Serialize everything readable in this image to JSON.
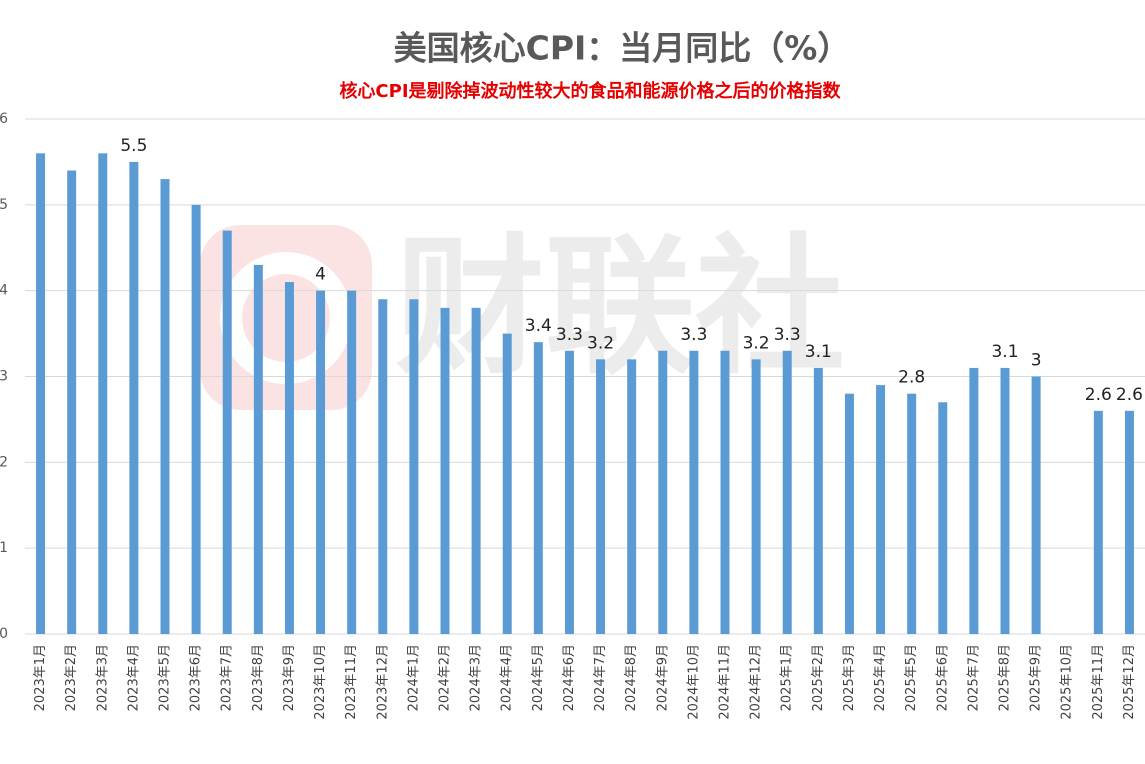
{
  "chart_data": {
    "type": "bar",
    "title": "美国核心CPI：当月同比（%）",
    "subtitle": "核心CPI是剔除掉波动性较大的食品和能源价格之后的价格指数",
    "watermark": "财联社",
    "categories": [
      "2023年1月",
      "2023年2月",
      "2023年3月",
      "2023年4月",
      "2023年5月",
      "2023年6月",
      "2023年7月",
      "2023年8月",
      "2023年9月",
      "2023年10月",
      "2023年11月",
      "2023年12月",
      "2024年1月",
      "2024年2月",
      "2024年3月",
      "2024年4月",
      "2024年5月",
      "2024年6月",
      "2024年7月",
      "2024年8月",
      "2024年9月",
      "2024年10月",
      "2024年11月",
      "2024年12月",
      "2025年1月",
      "2025年2月",
      "2025年3月",
      "2025年4月",
      "2025年5月",
      "2025年6月",
      "2025年7月",
      "2025年8月",
      "2025年9月",
      "2025年10月",
      "2025年11月",
      "2025年12月"
    ],
    "values": [
      5.6,
      5.4,
      5.6,
      5.5,
      5.3,
      5.0,
      4.7,
      4.3,
      4.1,
      4.0,
      4.0,
      3.9,
      3.9,
      3.8,
      3.8,
      3.5,
      3.4,
      3.3,
      3.2,
      3.2,
      3.3,
      3.3,
      3.3,
      3.2,
      3.3,
      3.1,
      2.8,
      2.9,
      2.8,
      2.7,
      3.1,
      3.1,
      3.0,
      null,
      2.6,
      2.6
    ],
    "value_labels": [
      null,
      null,
      null,
      "5.5",
      null,
      null,
      null,
      null,
      null,
      "4",
      null,
      null,
      null,
      null,
      null,
      null,
      "3.4",
      "3.3",
      "3.2",
      null,
      null,
      "3.3",
      null,
      "3.2",
      "3.3",
      "3.1",
      null,
      null,
      "2.8",
      null,
      null,
      "3.1",
      "3",
      null,
      "2.6",
      "2.6"
    ],
    "color": "#5b9bd5",
    "ylim": [
      0,
      6
    ],
    "yticks": [
      0,
      1,
      2,
      3,
      4,
      5,
      6
    ],
    "grid": true
  }
}
